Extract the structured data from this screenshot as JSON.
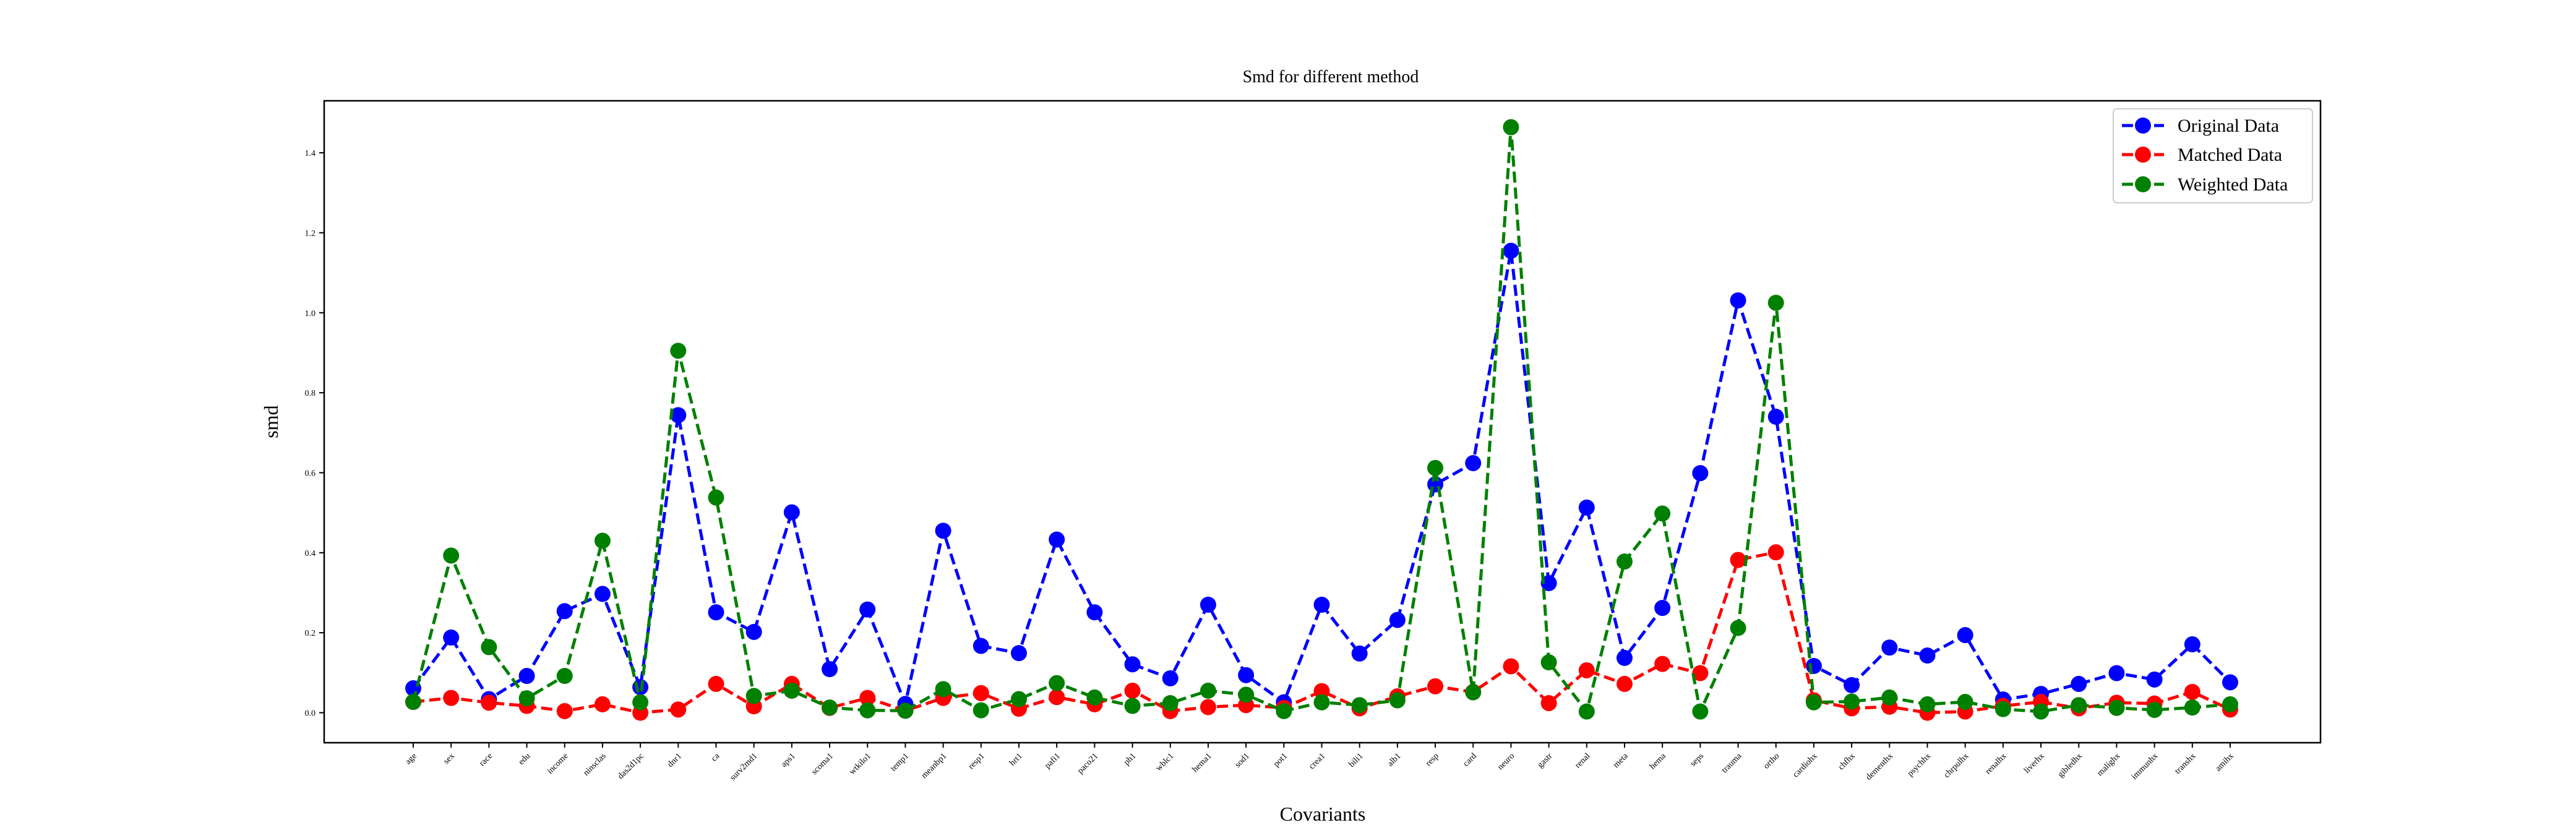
{
  "chart_data": {
    "type": "line",
    "title": "Smd for different method",
    "xlabel": "Covariants",
    "ylabel": "smd",
    "ylim": [
      -0.075,
      1.53
    ],
    "yticks": [
      "0.0",
      "0.2",
      "0.4",
      "0.6",
      "0.8",
      "1.0",
      "1.2",
      "1.4"
    ],
    "grid": false,
    "legend_position": "top-right",
    "categories": [
      "age",
      "sex",
      "race",
      "edu",
      "income",
      "ninsclas",
      "das2d1pc",
      "dnr1",
      "ca",
      "surv2md1",
      "aps1",
      "scoma1",
      "wtkilo1",
      "temp1",
      "meanbp1",
      "resp1",
      "hrt1",
      "pafi1",
      "paco21",
      "ph1",
      "wblc1",
      "hema1",
      "sod1",
      "pot1",
      "crea1",
      "bili1",
      "alb1",
      "resp",
      "card",
      "neuro",
      "gastr",
      "renal",
      "meta",
      "hema",
      "seps",
      "trauma",
      "ortho",
      "cardiohx",
      "chfhx",
      "dementhx",
      "psychhx",
      "chrpulhx",
      "renalhx",
      "liverhx",
      "gibledhx",
      "malighx",
      "immunhx",
      "transhx",
      "amihx"
    ],
    "series": [
      {
        "name": "Original Data",
        "color": "#0000ff",
        "values": [
          0.061,
          0.188,
          0.034,
          0.092,
          0.254,
          0.297,
          0.064,
          0.744,
          0.251,
          0.202,
          0.501,
          0.109,
          0.258,
          0.022,
          0.455,
          0.167,
          0.149,
          0.433,
          0.251,
          0.121,
          0.086,
          0.27,
          0.094,
          0.026,
          0.27,
          0.148,
          0.232,
          0.571,
          0.624,
          1.155,
          0.324,
          0.513,
          0.137,
          0.262,
          0.599,
          1.031,
          0.74,
          0.117,
          0.069,
          0.163,
          0.143,
          0.194,
          0.033,
          0.047,
          0.072,
          0.099,
          0.083,
          0.171,
          0.076
        ]
      },
      {
        "name": "Matched Data",
        "color": "#ff0000",
        "values": [
          0.027,
          0.037,
          0.025,
          0.017,
          0.004,
          0.021,
          0.0,
          0.008,
          0.072,
          0.016,
          0.072,
          0.012,
          0.037,
          0.005,
          0.037,
          0.049,
          0.01,
          0.039,
          0.021,
          0.055,
          0.004,
          0.014,
          0.019,
          0.012,
          0.054,
          0.011,
          0.041,
          0.066,
          0.052,
          0.116,
          0.024,
          0.106,
          0.072,
          0.122,
          0.099,
          0.382,
          0.401,
          0.031,
          0.011,
          0.015,
          0.0,
          0.003,
          0.017,
          0.027,
          0.011,
          0.025,
          0.023,
          0.052,
          0.008
        ]
      },
      {
        "name": "Weighted Data",
        "color": "#008000",
        "values": [
          0.027,
          0.393,
          0.164,
          0.036,
          0.092,
          0.43,
          0.026,
          0.905,
          0.538,
          0.042,
          0.055,
          0.013,
          0.006,
          0.005,
          0.059,
          0.006,
          0.034,
          0.074,
          0.038,
          0.017,
          0.024,
          0.055,
          0.045,
          0.004,
          0.026,
          0.019,
          0.031,
          0.612,
          0.051,
          1.464,
          0.126,
          0.003,
          0.378,
          0.498,
          0.003,
          0.212,
          1.025,
          0.026,
          0.028,
          0.038,
          0.021,
          0.027,
          0.009,
          0.003,
          0.019,
          0.012,
          0.007,
          0.013,
          0.021
        ]
      }
    ]
  }
}
